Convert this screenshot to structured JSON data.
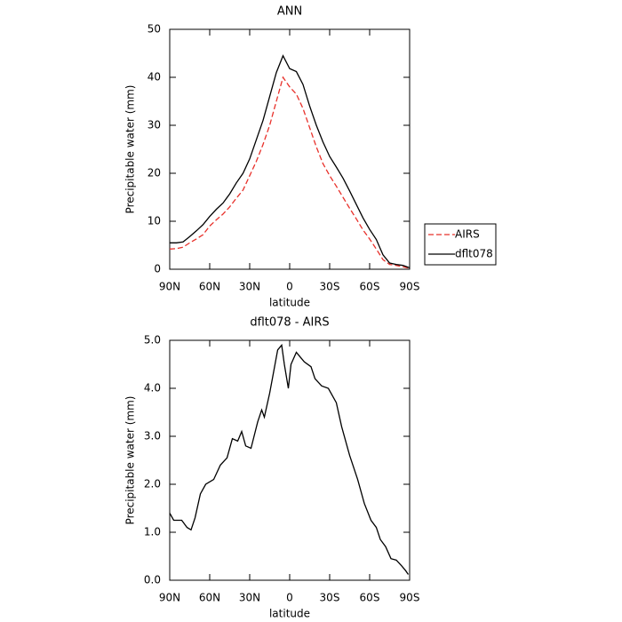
{
  "chart_data": [
    {
      "type": "line",
      "title": "ANN",
      "xlabel": "latitude",
      "ylabel": "Precipitable water (mm)",
      "x": [
        90,
        85,
        80,
        75,
        70,
        65,
        60,
        55,
        50,
        45,
        40,
        35,
        30,
        25,
        20,
        15,
        10,
        5,
        0,
        -5,
        -10,
        -15,
        -20,
        -25,
        -30,
        -35,
        -40,
        -45,
        -50,
        -55,
        -60,
        -65,
        -70,
        -75,
        -80,
        -85,
        -90
      ],
      "series": [
        {
          "name": "AIRS",
          "color": "#e8302a",
          "dashed": true,
          "values": [
            4.2,
            4.3,
            4.6,
            5.5,
            6.3,
            7.2,
            9,
            10.3,
            11.5,
            13,
            14.8,
            16.5,
            19.5,
            22.5,
            26,
            30,
            35,
            40,
            38,
            36.5,
            33.5,
            29.5,
            25.5,
            22,
            19.5,
            17.3,
            15,
            12.7,
            10.5,
            8.2,
            6.3,
            4.2,
            2,
            1,
            0.8,
            0.5,
            0.2
          ]
        },
        {
          "name": "dflt078",
          "color": "#000000",
          "dashed": false,
          "values": [
            5.5,
            5.5,
            5.7,
            6.8,
            8,
            9.3,
            11,
            12.5,
            13.8,
            15.7,
            18,
            20,
            23,
            27,
            31,
            36,
            41,
            44.5,
            41.8,
            41.2,
            38.5,
            34,
            30,
            26.5,
            23.5,
            21.3,
            19,
            16.3,
            13.5,
            10.7,
            8.3,
            6.2,
            3,
            1.3,
            1,
            0.8,
            0.3
          ]
        }
      ],
      "xlim": [
        90,
        -90
      ],
      "xticks": [
        {
          "value": 90,
          "label": "90N"
        },
        {
          "value": 60,
          "label": "60N"
        },
        {
          "value": 30,
          "label": "30N"
        },
        0,
        {
          "value": -30,
          "label": "30S"
        },
        {
          "value": -60,
          "label": "60S"
        },
        {
          "value": -90,
          "label": "90S"
        }
      ],
      "ylim": [
        0,
        50
      ],
      "yticks": [
        0,
        10,
        20,
        30,
        40,
        50
      ],
      "legend": "right"
    },
    {
      "type": "line",
      "title": "dflt078 - AIRS",
      "xlabel": "latitude",
      "ylabel": "Precipitable water (mm)",
      "x": [
        90,
        87,
        81,
        77,
        74,
        71,
        67,
        63,
        57,
        52,
        47,
        43,
        39,
        36,
        33,
        29,
        24,
        21,
        19,
        15,
        13,
        9,
        6,
        4,
        1,
        -1,
        -5,
        -8,
        -11,
        -16,
        -19,
        -24,
        -29,
        -35,
        -39,
        -45,
        -51,
        -56,
        -61,
        -65,
        -68,
        -72,
        -76,
        -80,
        -84,
        -87,
        -89
      ],
      "series": [
        {
          "color": "#000000",
          "dashed": false,
          "values": [
            1.4,
            1.25,
            1.25,
            1.1,
            1.05,
            1.3,
            1.8,
            2.0,
            2.1,
            2.4,
            2.55,
            2.95,
            2.9,
            3.1,
            2.8,
            2.75,
            3.3,
            3.55,
            3.4,
            3.9,
            4.2,
            4.8,
            4.9,
            4.5,
            4.0,
            4.5,
            4.75,
            4.65,
            4.55,
            4.45,
            4.2,
            4.05,
            4.0,
            3.7,
            3.2,
            2.6,
            2.1,
            1.6,
            1.25,
            1.1,
            0.85,
            0.7,
            0.45,
            0.42,
            0.3,
            0.2,
            0.12
          ]
        }
      ],
      "xlim": [
        90,
        -90
      ],
      "xticks": [
        {
          "value": 90,
          "label": "90N"
        },
        {
          "value": 60,
          "label": "60N"
        },
        {
          "value": 30,
          "label": "30N"
        },
        0,
        {
          "value": -30,
          "label": "30S"
        },
        {
          "value": -60,
          "label": "60S"
        },
        {
          "value": -90,
          "label": "90S"
        }
      ],
      "ylim": [
        0,
        5
      ],
      "yticks": [
        {
          "value": 0,
          "label": "0.0"
        },
        {
          "value": 1,
          "label": "1.0"
        },
        {
          "value": 2,
          "label": "2.0"
        },
        {
          "value": 3,
          "label": "3.0"
        },
        {
          "value": 4,
          "label": "4.0"
        },
        {
          "value": 5,
          "label": "5.0"
        }
      ]
    }
  ]
}
